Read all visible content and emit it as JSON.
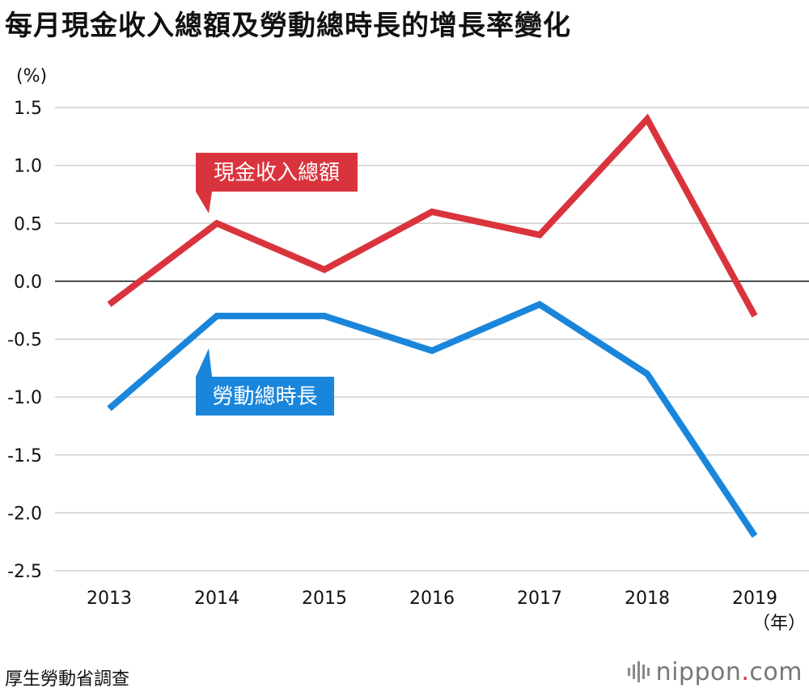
{
  "title": "每月現金收入總額及勞動總時長的增長率變化",
  "source": "厚生勞動省調查",
  "logo": {
    "name": "nippon",
    "dot": ".",
    "tld": "com"
  },
  "chart_data": {
    "type": "line",
    "ylabel": "(%)",
    "xunit": "（年）",
    "categories": [
      "2013",
      "2014",
      "2015",
      "2016",
      "2017",
      "2018",
      "2019"
    ],
    "ylim": [
      -2.5,
      1.5
    ],
    "yticks": [
      1.5,
      1.0,
      0.5,
      0.0,
      -0.5,
      -1.0,
      -1.5,
      -2.0,
      -2.5
    ],
    "ytick_labels": [
      "1.5",
      "1.0",
      "0.5",
      "0.0",
      "-0.5",
      "-1.0",
      "-1.5",
      "-2.0",
      "-2.5"
    ],
    "grid": true,
    "series": [
      {
        "name": "現金收入總額",
        "color": "#d9343d",
        "values": [
          -0.2,
          0.5,
          0.1,
          0.6,
          0.4,
          1.4,
          -0.3
        ]
      },
      {
        "name": "勞動總時長",
        "color": "#1a86db",
        "values": [
          -1.1,
          -0.3,
          -0.3,
          -0.6,
          -0.2,
          -0.8,
          -2.2
        ]
      }
    ]
  }
}
